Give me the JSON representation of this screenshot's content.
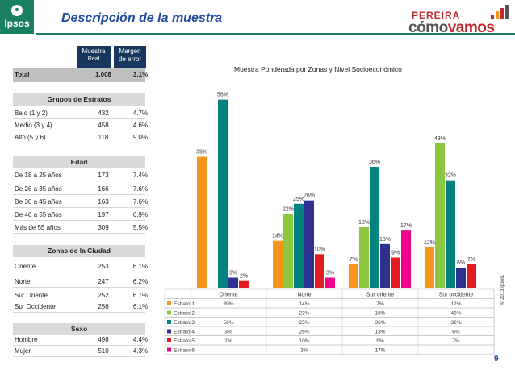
{
  "header": {
    "logo": "Ipsos",
    "title": "Descripción de la muestra",
    "brand_top": "PEREIRA",
    "brand_main_a": "cómo",
    "brand_main_b": "vamos"
  },
  "summary": {
    "col_muestra": "Muestra",
    "col_muestra_sub": "Real",
    "col_margen": "Margen",
    "col_margen_sub": "de error",
    "total_label": "Total",
    "total_n": "1.008",
    "total_margin": "3,1%"
  },
  "tables": [
    {
      "title": "Grupos de Estratos",
      "rows": [
        {
          "label": "Bajo (1 y 2)",
          "n": "432",
          "margin": "4.7%"
        },
        {
          "label": "Medio (3 y 4)",
          "n": "458",
          "margin": "4.6%"
        },
        {
          "label": "Alto (5 y 6)",
          "n": "118",
          "margin": "9.0%"
        }
      ]
    },
    {
      "title": "Edad",
      "rows": [
        {
          "label": "De 18 a 25 años",
          "n": "173",
          "margin": "7.4%"
        },
        {
          "label": "De 26 a 35 años",
          "n": "166",
          "margin": "7.6%"
        },
        {
          "label": "De 36 a 45 años",
          "n": "163",
          "margin": "7.6%"
        },
        {
          "label": "De 46 a 55 años",
          "n": "197",
          "margin": "6.9%"
        },
        {
          "label": "Más de 55 años",
          "n": "309",
          "margin": "5.5%"
        }
      ]
    },
    {
      "title": "Zonas de la Ciudad",
      "rows": [
        {
          "label": "Oriente",
          "n": "253",
          "margin": "6.1%"
        },
        {
          "label": "Norte",
          "n": "247",
          "margin": "6.2%"
        },
        {
          "label": "Sur Oriente",
          "n": "252",
          "margin": "6.1%"
        },
        {
          "label": "Sur Occidente",
          "n": "256",
          "margin": "6.1%"
        }
      ]
    },
    {
      "title": "Sexo",
      "rows": [
        {
          "label": "Hombre",
          "n": "498",
          "margin": "4.4%"
        },
        {
          "label": "Mujer",
          "n": "510",
          "margin": "4.3%"
        }
      ]
    }
  ],
  "chart_data": {
    "type": "bar",
    "title": "Muestra Ponderada por Zonas y Nivel Socioeconómico",
    "categories": [
      "Oriente",
      "Norte",
      "Sur oriente",
      "Sur occidente"
    ],
    "series": [
      {
        "name": "Estrato 1",
        "color": "#f7941d",
        "values": [
          39,
          14,
          7,
          12
        ]
      },
      {
        "name": "Estrato 2",
        "color": "#8dc63f",
        "values": [
          null,
          22,
          18,
          43
        ]
      },
      {
        "name": "Estrato 3",
        "color": "#00827f",
        "values": [
          56,
          25,
          36,
          32
        ]
      },
      {
        "name": "Estrato 4",
        "color": "#2e3192",
        "values": [
          3,
          26,
          13,
          6
        ]
      },
      {
        "name": "Estrato 5",
        "color": "#e31b23",
        "values": [
          2,
          10,
          9,
          7
        ]
      },
      {
        "name": "Estrato 6",
        "color": "#ec008c",
        "values": [
          null,
          3,
          17,
          null
        ]
      }
    ],
    "ylim": [
      0,
      60
    ],
    "unit": "%"
  },
  "footer": {
    "copyright": "© 2013 Ipsos.",
    "page": "9"
  }
}
